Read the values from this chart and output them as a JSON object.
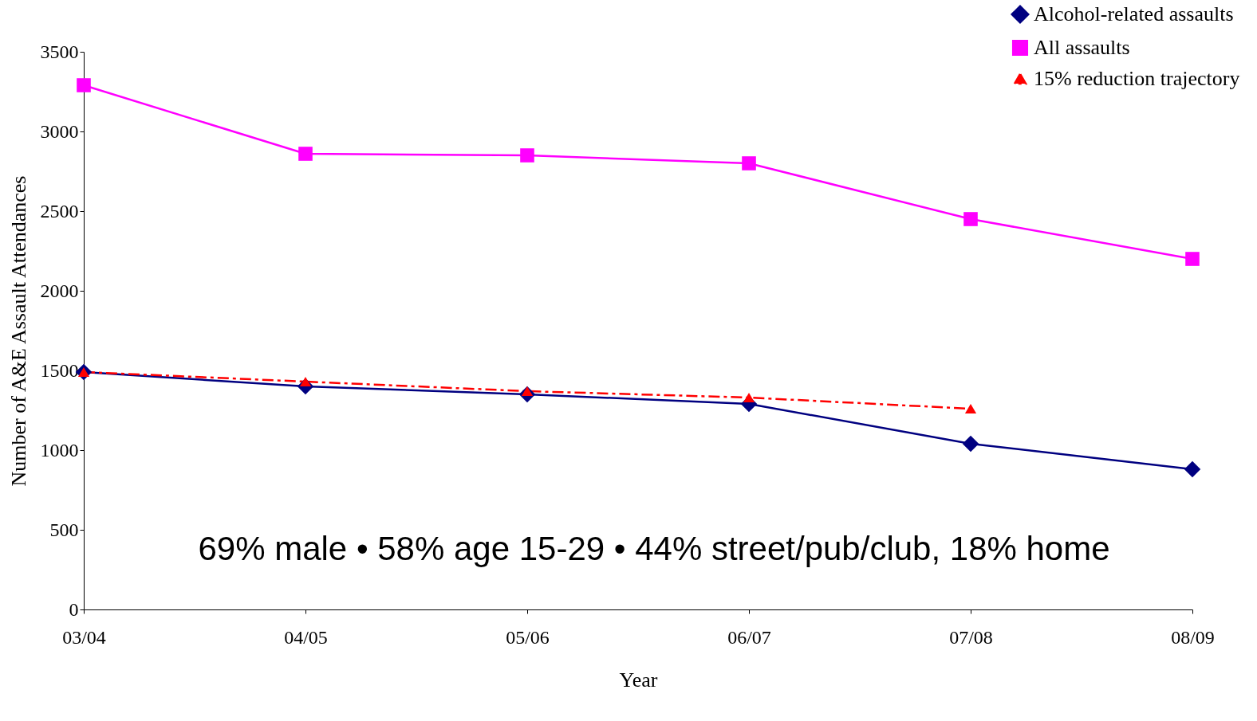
{
  "chart_data": {
    "type": "line",
    "xlabel": "Year",
    "ylabel": "Number of A&E Assault Attendances",
    "categories": [
      "03/04",
      "04/05",
      "05/06",
      "06/07",
      "07/08",
      "08/09"
    ],
    "series": [
      {
        "name": "Alcohol-related assaults",
        "color": "#000080",
        "marker": "diamond",
        "line_style": "solid",
        "values": [
          1490,
          1400,
          1350,
          1290,
          1040,
          880
        ]
      },
      {
        "name": "All assaults",
        "color": "#ff00ff",
        "marker": "square",
        "line_style": "solid",
        "values": [
          3290,
          2860,
          2850,
          2800,
          2450,
          2200
        ]
      },
      {
        "name": "15% reduction trajectory",
        "color": "#ff0000",
        "marker": "triangle",
        "line_style": "dashed",
        "values": [
          1490,
          1430,
          1370,
          1330,
          1260,
          null
        ]
      }
    ],
    "ylim": [
      0,
      3500
    ],
    "yticks": [
      0,
      500,
      1000,
      1500,
      2000,
      2500,
      3000,
      3500
    ],
    "grid": false,
    "legend": "top right",
    "annotations": [
      "69% male   • 58% age 15-29   • 44% street/pub/club, 18% home"
    ]
  }
}
